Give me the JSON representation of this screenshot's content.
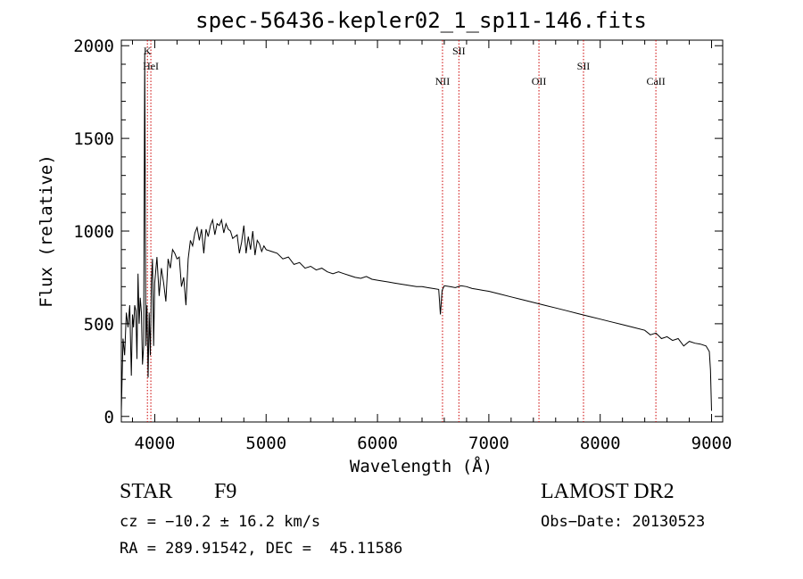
{
  "chart_data": {
    "type": "line",
    "title": "spec-56436-kepler02_1_sp11-146.fits",
    "xlabel": "Wavelength (Å)",
    "ylabel": "Flux (relative)",
    "xlim": [
      3700,
      9100
    ],
    "ylim": [
      -30,
      2030
    ],
    "xticks": [
      4000,
      5000,
      6000,
      7000,
      8000,
      9000
    ],
    "yticks": [
      0,
      500,
      1000,
      1500,
      2000
    ],
    "xtick_labels": [
      "4000",
      "5000",
      "6000",
      "7000",
      "8000",
      "9000"
    ],
    "ytick_labels": [
      "0",
      "500",
      "1000",
      "1500",
      "2000"
    ],
    "grid": false,
    "line_color": "#000000",
    "marker_color": "#cc0000",
    "series": [
      {
        "x": [
          3700,
          3715,
          3730,
          3745,
          3760,
          3775,
          3790,
          3800,
          3810,
          3820,
          3830,
          3840,
          3850,
          3860,
          3870,
          3880,
          3890,
          3900,
          3910,
          3920,
          3930,
          3940,
          3950,
          3960,
          3970,
          3980,
          3990,
          4000,
          4020,
          4040,
          4060,
          4080,
          4100,
          4120,
          4140,
          4160,
          4180,
          4200,
          4220,
          4240,
          4260,
          4280,
          4300,
          4320,
          4340,
          4360,
          4380,
          4400,
          4420,
          4440,
          4460,
          4480,
          4500,
          4520,
          4540,
          4560,
          4580,
          4600,
          4620,
          4640,
          4660,
          4680,
          4700,
          4720,
          4740,
          4760,
          4780,
          4800,
          4820,
          4840,
          4860,
          4880,
          4900,
          4920,
          4940,
          4960,
          4980,
          5000,
          5050,
          5100,
          5150,
          5200,
          5250,
          5300,
          5350,
          5400,
          5450,
          5500,
          5550,
          5600,
          5650,
          5700,
          5750,
          5800,
          5850,
          5900,
          5950,
          6000,
          6050,
          6100,
          6150,
          6200,
          6250,
          6300,
          6350,
          6400,
          6450,
          6500,
          6550,
          6565,
          6580,
          6600,
          6650,
          6700,
          6750,
          6800,
          6850,
          6900,
          6950,
          7000,
          7100,
          7200,
          7300,
          7400,
          7500,
          7600,
          7700,
          7800,
          7900,
          8000,
          8100,
          8200,
          8300,
          8400,
          8450,
          8500,
          8550,
          8600,
          8650,
          8700,
          8750,
          8800,
          8850,
          8900,
          8950,
          8980,
          8990,
          9000
        ],
        "y": [
          30,
          420,
          330,
          560,
          480,
          600,
          220,
          550,
          480,
          600,
          570,
          310,
          770,
          500,
          640,
          560,
          280,
          380,
          1960,
          380,
          600,
          210,
          560,
          330,
          730,
          850,
          380,
          720,
          860,
          650,
          800,
          720,
          620,
          850,
          800,
          900,
          880,
          850,
          860,
          700,
          750,
          600,
          850,
          950,
          920,
          990,
          1020,
          950,
          1010,
          880,
          1010,
          970,
          1030,
          1060,
          980,
          1040,
          1030,
          1060,
          990,
          1040,
          1010,
          1000,
          960,
          970,
          980,
          880,
          940,
          1030,
          880,
          970,
          900,
          1000,
          870,
          950,
          930,
          890,
          920,
          900,
          890,
          880,
          850,
          860,
          820,
          830,
          800,
          810,
          790,
          800,
          780,
          770,
          780,
          770,
          760,
          750,
          745,
          755,
          740,
          735,
          730,
          725,
          720,
          715,
          710,
          705,
          700,
          700,
          695,
          690,
          685,
          550,
          680,
          705,
          700,
          695,
          705,
          700,
          690,
          685,
          680,
          675,
          660,
          645,
          630,
          615,
          600,
          585,
          570,
          555,
          540,
          525,
          510,
          495,
          480,
          465,
          440,
          450,
          420,
          430,
          410,
          420,
          380,
          405,
          395,
          390,
          380,
          350,
          250,
          30
        ]
      }
    ],
    "line_markers": [
      {
        "label": "K",
        "x": 3934
      },
      {
        "label": "HeI",
        "x": 3965
      },
      {
        "label": "NII",
        "x": 6584
      },
      {
        "label": "SII",
        "x": 6731
      },
      {
        "label": "OII",
        "x": 7450
      },
      {
        "label": "SII",
        "x": 7850
      },
      {
        "label": "CaII",
        "x": 8500
      }
    ]
  },
  "footer": {
    "object_type": "STAR",
    "subclass": "F9",
    "survey": "LAMOST DR2",
    "cz_text": "cz = −10.2 ± 16.2 km/s",
    "obs_date": "Obs−Date: 20130523",
    "coords": "RA = 289.91542, DEC =  45.11586"
  }
}
